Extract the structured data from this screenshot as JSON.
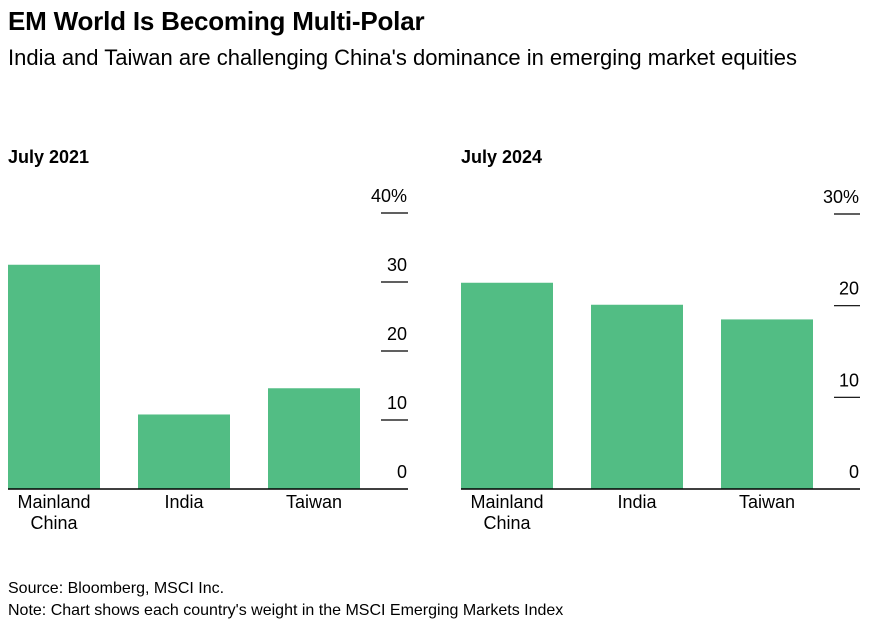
{
  "title": "EM World Is Becoming Multi-Polar",
  "subtitle": "India and Taiwan are challenging China's dominance in emerging market equities",
  "footer": {
    "source": "Source: Bloomberg, MSCI Inc.",
    "note": "Note: Chart shows each country's weight in the MSCI Emerging Markets Index"
  },
  "colors": {
    "bar": "#52bd84",
    "axis": "#000000"
  },
  "chart_data": [
    {
      "type": "bar",
      "title": "July 2021",
      "categories": [
        "Mainland China",
        "India",
        "Taiwan"
      ],
      "category_lines": [
        [
          "Mainland",
          "China"
        ],
        [
          "India"
        ],
        [
          "Taiwan"
        ]
      ],
      "values": [
        32.5,
        10.8,
        14.6
      ],
      "ylim": [
        0,
        40
      ],
      "yticks": [
        0,
        10,
        20,
        30,
        40
      ],
      "ytick_labels": [
        "0",
        "10",
        "20",
        "30",
        "40%"
      ],
      "axis_side": "right",
      "grid": false
    },
    {
      "type": "bar",
      "title": "July 2024",
      "categories": [
        "Mainland China",
        "India",
        "Taiwan"
      ],
      "category_lines": [
        [
          "Mainland",
          "China"
        ],
        [
          "India"
        ],
        [
          "Taiwan"
        ]
      ],
      "values": [
        22.5,
        20.1,
        18.5
      ],
      "ylim": [
        0,
        30
      ],
      "yticks": [
        0,
        10,
        20,
        30
      ],
      "ytick_labels": [
        "0",
        "10",
        "20",
        "30%"
      ],
      "axis_side": "right",
      "grid": false
    }
  ]
}
